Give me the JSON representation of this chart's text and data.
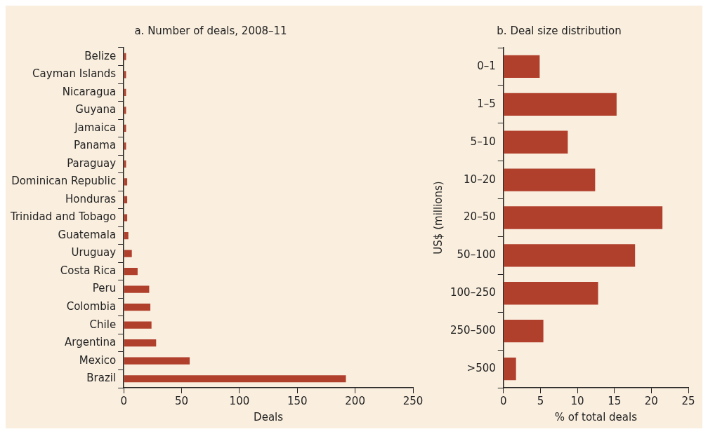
{
  "chart_data": [
    {
      "type": "bar",
      "orientation": "horizontal",
      "title": "a. Number of deals, 2008–11",
      "xlabel": "Deals",
      "categories": [
        "Belize",
        "Cayman Islands",
        "Nicaragua",
        "Guyana",
        "Jamaica",
        "Panama",
        "Paraguay",
        "Dominican Republic",
        "Honduras",
        "Trinidad and Tobago",
        "Guatemala",
        "Uruguay",
        "Costa Rica",
        "Peru",
        "Colombia",
        "Chile",
        "Argentina",
        "Mexico",
        "Brazil"
      ],
      "values": [
        2,
        2,
        2,
        2,
        2,
        2,
        2,
        3,
        3,
        3,
        4,
        7,
        12,
        22,
        23,
        24,
        28,
        57,
        192
      ],
      "color": "#b03f2c",
      "xlim": [
        0,
        250
      ],
      "xticks": [
        0,
        50,
        100,
        150,
        200,
        250
      ],
      "grid": false,
      "legend": false
    },
    {
      "type": "bar",
      "orientation": "horizontal",
      "title": "b. Deal size distribution",
      "xlabel": "% of total deals",
      "ylabel": "US$ (millions)",
      "categories": [
        "0–1",
        "1–5",
        "5–10",
        "10–20",
        "20–50",
        "50–100",
        "100–250",
        "250–500",
        ">500"
      ],
      "values": [
        4.9,
        15.3,
        8.7,
        12.4,
        21.5,
        17.8,
        12.8,
        5.4,
        1.7
      ],
      "color": "#b03f2c",
      "xlim": [
        0,
        25
      ],
      "xticks": [
        0,
        5,
        10,
        15,
        20,
        25
      ],
      "grid": false,
      "legend": false
    }
  ]
}
